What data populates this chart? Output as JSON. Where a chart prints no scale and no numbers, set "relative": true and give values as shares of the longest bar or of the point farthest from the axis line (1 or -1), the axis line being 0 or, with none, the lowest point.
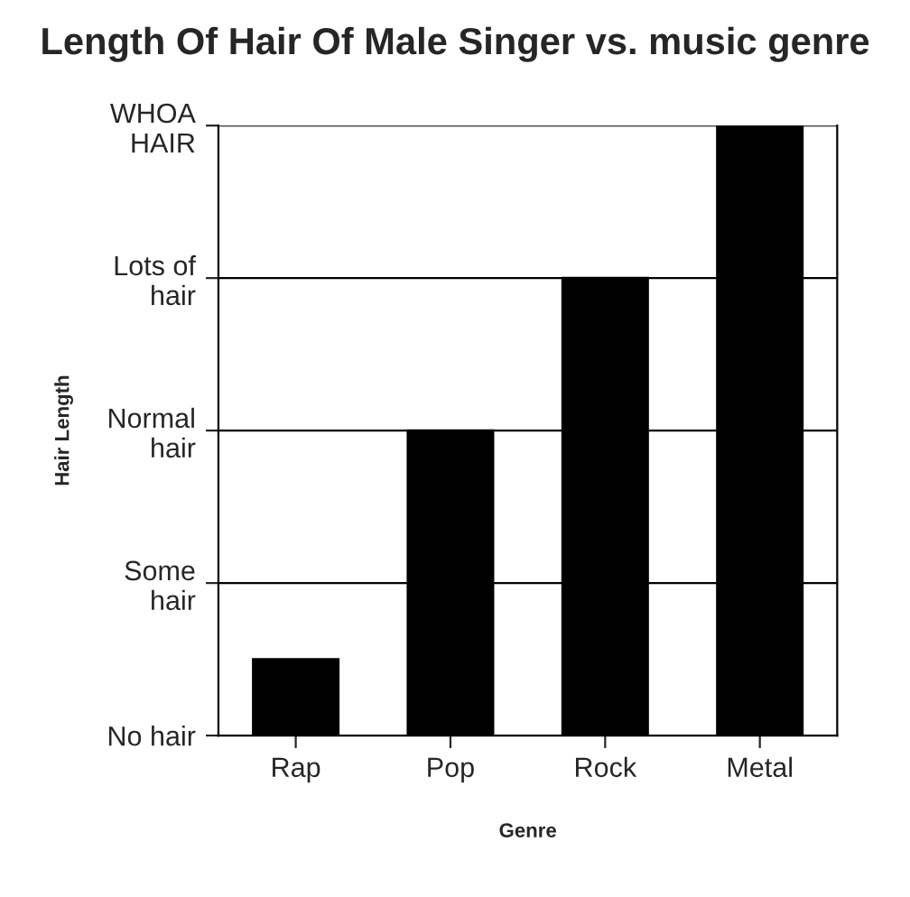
{
  "chart_data": {
    "type": "bar",
    "title": "Length Of Hair Of Male Singer vs. music genre",
    "xlabel": "Genre",
    "categories": [
      "Rap",
      "Pop",
      "Rock",
      "Metal"
    ],
    "series": [
      {
        "color": "#000000",
        "values": [
          0.125,
          0.5,
          0.75,
          1
        ]
      }
    ],
    "relative": true,
    "annotations": [
      "Hair Length",
      "No hair",
      "Some\nhair",
      "Normal\nhair",
      "Lots of\nhair",
      "WHOA\nHAIR"
    ],
    "grid": "y"
  }
}
